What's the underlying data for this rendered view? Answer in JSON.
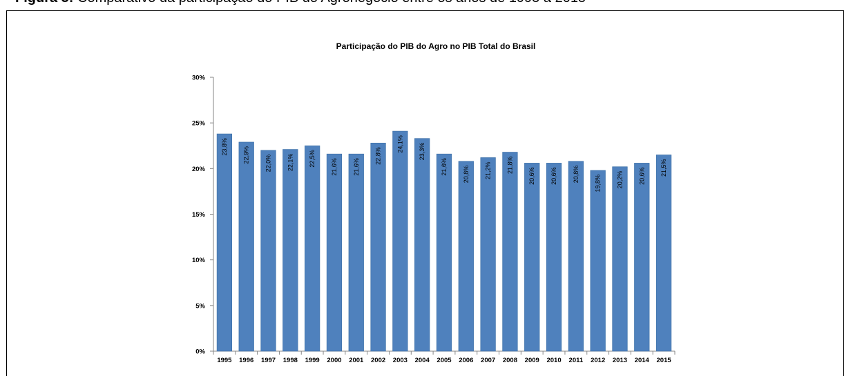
{
  "figure_caption": {
    "prefix": "Figura 3:",
    "text": "Comparativo da participação do PIB do Agronegócio entre os anos de 1995 a 2015"
  },
  "chart_data": {
    "type": "bar",
    "title": "Participação do PIB do Agro no PIB Total do Brasil",
    "xlabel": "",
    "ylabel": "",
    "categories": [
      "1995",
      "1996",
      "1997",
      "1998",
      "1999",
      "2000",
      "2001",
      "2002",
      "2003",
      "2004",
      "2005",
      "2006",
      "2007",
      "2008",
      "2009",
      "2010",
      "2011",
      "2012",
      "2013",
      "2014",
      "2015"
    ],
    "values": [
      23.8,
      22.9,
      22.0,
      22.1,
      22.5,
      21.6,
      21.6,
      22.8,
      24.1,
      23.3,
      21.6,
      20.8,
      21.2,
      21.8,
      20.6,
      20.6,
      20.8,
      19.8,
      20.2,
      20.6,
      21.5
    ],
    "data_labels": [
      "23,8%",
      "22,9%",
      "22,0%",
      "22,1%",
      "22,5%",
      "21,6%",
      "21,6%",
      "22,8%",
      "24,1%",
      "23,3%",
      "21,6%",
      "20,8%",
      "21,2%",
      "21,8%",
      "20,6%",
      "20,6%",
      "20,8%",
      "19,8%",
      "20,2%",
      "20,6%",
      "21,5%"
    ],
    "yticks": [
      0,
      5,
      10,
      15,
      20,
      25,
      30
    ],
    "ytick_labels": [
      "0%",
      "5%",
      "10%",
      "15%",
      "20%",
      "25%",
      "30%"
    ],
    "ylim": [
      0,
      30
    ],
    "grid": false,
    "legend": "none",
    "bar_color": "#4f81bd"
  }
}
